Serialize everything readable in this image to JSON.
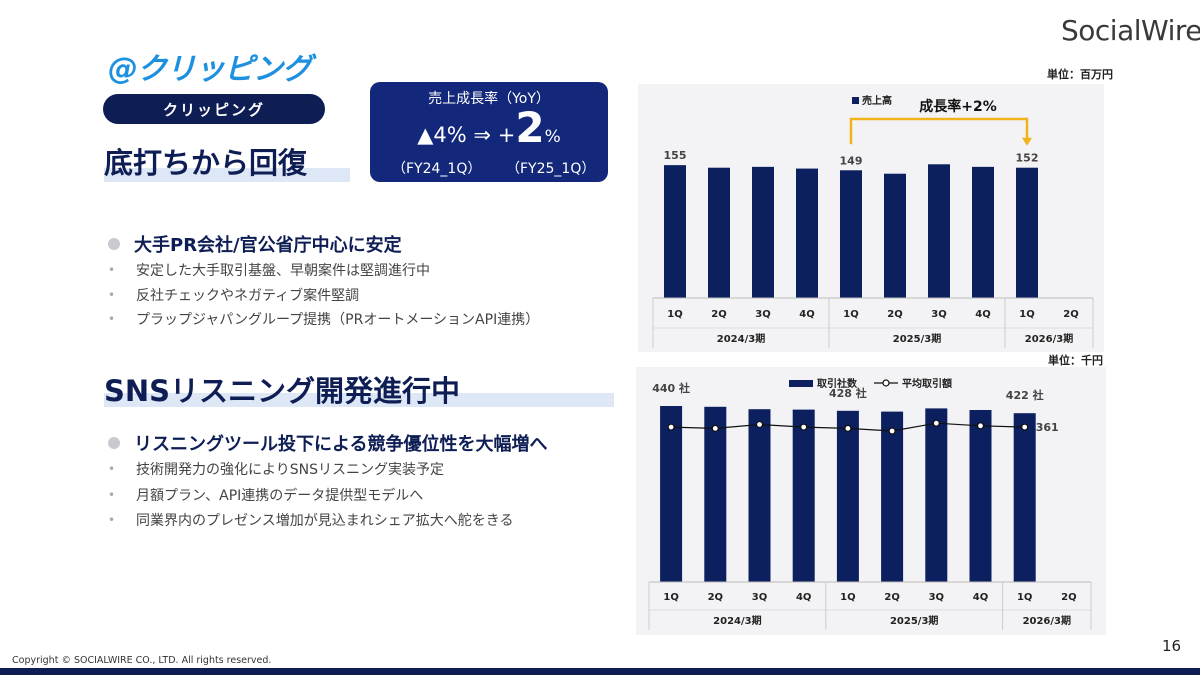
{
  "brand": "SocialWire",
  "product_logo": "@クリッピング",
  "section_pill": "クリッピング",
  "heading1": "底打ちから回復",
  "heading2": "SNSリスニング開発進行中",
  "yoy": {
    "title": "売上成長率（YoY）",
    "from": "▲4%",
    "arrow": "⇒",
    "plus": "+",
    "big": "2",
    "pct": "%",
    "fy_from": "（FY24_1Q）",
    "fy_to": "（FY25_1Q）"
  },
  "block1": {
    "lead": "大手PR会社/官公省庁中心に安定",
    "bullets": [
      "安定した大手取引基盤、早朝案件は堅調進行中",
      "反社チェックやネガティブ案件堅調",
      "プラップジャパングループ提携（PRオートメーションAPI連携）"
    ]
  },
  "block2": {
    "lead": "リスニングツール投下による競争優位性を大幅増へ",
    "bullets": [
      "技術開発力の強化によりSNSリスニング実装予定",
      "月額プラン、API連携のデータ提供型モデルへ",
      "同業界内のプレゼンス増加が見込まれシェア拡大へ舵をきる"
    ]
  },
  "unit1": "単位：百万円",
  "unit2": "単位：千円",
  "colors": {
    "navy": "#0e1e55",
    "bar": "#0c1f5e",
    "accent": "#f2b21c",
    "box": "#13287a"
  },
  "chart_data": [
    {
      "type": "bar",
      "categories": [
        "1Q",
        "2Q",
        "3Q",
        "4Q",
        "1Q",
        "2Q",
        "3Q",
        "4Q",
        "1Q",
        "2Q"
      ],
      "groups": [
        {
          "label": "2024/3期",
          "count": 4
        },
        {
          "label": "2025/3期",
          "count": 4
        },
        {
          "label": "2026/3期",
          "count": 2
        }
      ],
      "series": [
        {
          "name": "売上高",
          "values": [
            155,
            152,
            153,
            151,
            149,
            145,
            156,
            153,
            152,
            null
          ]
        }
      ],
      "data_labels": [
        {
          "index": 0,
          "text": "155"
        },
        {
          "index": 4,
          "text": "149"
        },
        {
          "index": 8,
          "text": "152"
        }
      ],
      "annotation": "成長率+2%",
      "ylim": [
        0,
        175
      ],
      "legend": "top"
    },
    {
      "type": "bar",
      "categories": [
        "1Q",
        "2Q",
        "3Q",
        "4Q",
        "1Q",
        "2Q",
        "3Q",
        "4Q",
        "1Q",
        "2Q"
      ],
      "groups": [
        {
          "label": "2024/3期",
          "count": 4
        },
        {
          "label": "2025/3期",
          "count": 4
        },
        {
          "label": "2026/3期",
          "count": 2
        }
      ],
      "series": [
        {
          "name": "取引社数",
          "kind": "bar",
          "values": [
            440,
            438,
            432,
            431,
            428,
            426,
            434,
            430,
            422,
            null
          ]
        },
        {
          "name": "平均取引額",
          "kind": "line",
          "values": [
            361,
            360,
            363,
            361,
            360,
            358,
            364,
            362,
            361,
            null
          ]
        }
      ],
      "data_labels": [
        {
          "index": 0,
          "text": "440 社"
        },
        {
          "index": 4,
          "text": "428 社"
        },
        {
          "index": 8,
          "text": "422 社"
        },
        {
          "index": 8,
          "text": "361"
        }
      ],
      "ylim_bar": [
        0,
        500
      ],
      "legend": "top"
    }
  ],
  "footer": {
    "copyright": "Copyright © SOCIALWIRE CO., LTD. All rights reserved.",
    "page": "16"
  }
}
